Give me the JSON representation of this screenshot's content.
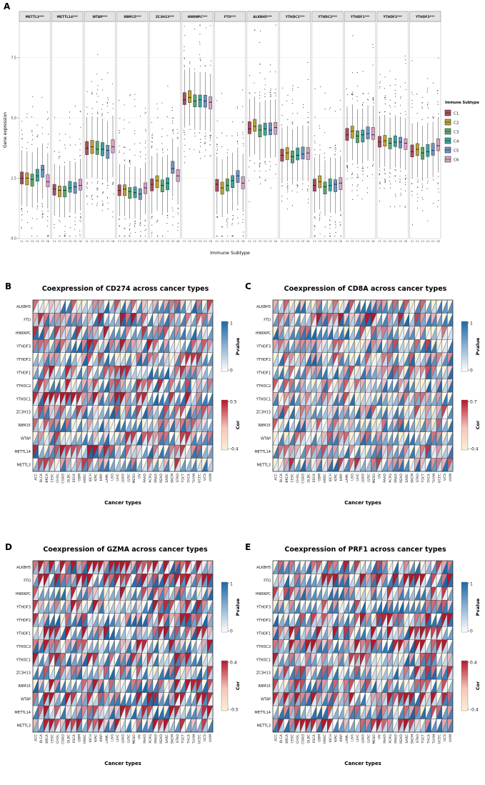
{
  "panels": [
    {
      "letter": "A"
    },
    {
      "letter": "B"
    },
    {
      "letter": "C"
    },
    {
      "letter": "D"
    },
    {
      "letter": "E"
    }
  ],
  "chart_data": [
    {
      "id": "A",
      "type": "boxplot",
      "ylabel": "Gene expression",
      "xlabel": "Immune Subtype",
      "yticks": [
        0,
        2.5,
        5,
        7.5
      ],
      "ytick_labels": [
        "0.0",
        "2.5",
        "5.0",
        "7.5"
      ],
      "ylim": [
        0,
        9.0
      ],
      "legend_title": "Immune Subtype",
      "groups": [
        "C1",
        "C2",
        "C3",
        "C4",
        "C5",
        "C6"
      ],
      "group_colors": [
        "#B04A5A",
        "#BFA22E",
        "#56A86B",
        "#36A79E",
        "#6E93C6",
        "#D9A0C6"
      ],
      "facets": [
        {
          "label": "METTL3***",
          "gene": "METTL3",
          "significance": "***",
          "medians": [
            2.5,
            2.5,
            2.45,
            2.6,
            2.85,
            2.35
          ],
          "iqr": 0.5,
          "whisker": 0.9
        },
        {
          "label": "METTL14***",
          "gene": "METTL14",
          "significance": "***",
          "medians": [
            2.05,
            2.0,
            2.0,
            2.1,
            2.15,
            2.2
          ],
          "iqr": 0.45,
          "whisker": 0.85
        },
        {
          "label": "WTAP***",
          "gene": "WTAP",
          "significance": "***",
          "medians": [
            3.75,
            3.8,
            3.7,
            3.7,
            3.65,
            3.8
          ],
          "iqr": 0.55,
          "whisker": 1.0
        },
        {
          "label": "RBM15***",
          "gene": "RBM15",
          "significance": "***",
          "medians": [
            2.0,
            2.05,
            1.95,
            1.9,
            1.85,
            2.1
          ],
          "iqr": 0.45,
          "whisker": 0.85
        },
        {
          "label": "ZC3H13***",
          "gene": "ZC3H13",
          "significance": "***",
          "medians": [
            2.25,
            2.4,
            2.2,
            2.3,
            2.9,
            2.6
          ],
          "iqr": 0.5,
          "whisker": 0.95
        },
        {
          "label": "HNRNPC***",
          "gene": "HNRNPC",
          "significance": "***",
          "medians": [
            5.75,
            5.85,
            5.7,
            5.75,
            5.7,
            5.65
          ],
          "iqr": 0.5,
          "whisker": 0.95
        },
        {
          "label": "FTO***",
          "gene": "FTO",
          "significance": "***",
          "medians": [
            2.25,
            2.1,
            2.2,
            2.4,
            2.6,
            2.3
          ],
          "iqr": 0.5,
          "whisker": 0.95
        },
        {
          "label": "ALKBH5***",
          "gene": "ALKBH5",
          "significance": "***",
          "medians": [
            4.55,
            4.65,
            4.5,
            4.55,
            4.5,
            4.6
          ],
          "iqr": 0.5,
          "whisker": 0.95
        },
        {
          "label": "YTHDC1***",
          "gene": "YTHDC1",
          "significance": "***",
          "medians": [
            3.45,
            3.55,
            3.4,
            3.45,
            3.5,
            3.55
          ],
          "iqr": 0.5,
          "whisker": 0.9
        },
        {
          "label": "YTHDC2***",
          "gene": "YTHDC2",
          "significance": "***",
          "medians": [
            2.2,
            2.35,
            2.15,
            2.2,
            2.25,
            2.3
          ],
          "iqr": 0.5,
          "whisker": 0.9
        },
        {
          "label": "YTHDF1***",
          "gene": "YTHDF1",
          "significance": "***",
          "medians": [
            4.3,
            4.45,
            4.25,
            4.3,
            4.35,
            4.3
          ],
          "iqr": 0.5,
          "whisker": 0.9
        },
        {
          "label": "YTHDF2***",
          "gene": "YTHDF2",
          "significance": "***",
          "medians": [
            4.0,
            4.05,
            3.95,
            4.0,
            4.0,
            3.95
          ],
          "iqr": 0.45,
          "whisker": 0.85
        },
        {
          "label": "YTHDF3***",
          "gene": "YTHDF3",
          "significance": "***",
          "medians": [
            3.6,
            3.7,
            3.55,
            3.6,
            3.65,
            3.85
          ],
          "iqr": 0.5,
          "whisker": 0.9
        }
      ]
    },
    {
      "id": "B",
      "type": "heatmap",
      "title": "Coexpression of CD274 across cancer types",
      "xlabel": "Cancer types",
      "rows": [
        "ALKBH5",
        "FTO",
        "HNRNPC",
        "YTHDF3",
        "YTHDF2",
        "YTHDF1",
        "YTHDC2",
        "YTHDC1",
        "ZC3H13",
        "RBM15",
        "WTAP",
        "METTL14",
        "METTL3"
      ],
      "columns": [
        "ACC",
        "BLCA",
        "BRCA",
        "CESC",
        "CHOL",
        "COAD",
        "DLBC",
        "ESCA",
        "GBM",
        "HNSC",
        "KICH",
        "KIRC",
        "KIRP",
        "LAML",
        "LGG",
        "LIHC",
        "LUAD",
        "LUSC",
        "MESO",
        "OV",
        "PAAD",
        "PCPG",
        "PRAD",
        "READ",
        "SARC",
        "SKCM",
        "STAD",
        "TGCT",
        "THCA",
        "THYM",
        "UCEC",
        "UCS",
        "UVM"
      ],
      "legends": {
        "pvalue": {
          "label": "Pvalue",
          "max_label": "1",
          "min_label": "0",
          "max": 1,
          "min": 0,
          "color_high": "#1E66A8",
          "color_low": "#FFFFFF"
        },
        "cor": {
          "label": "Cor",
          "max_label": "0.5",
          "min_label": "-0.4",
          "max": 0.5,
          "min": -0.4,
          "color_high": "#B2182B",
          "color_low": "#FBF0D2"
        }
      },
      "seed": 101
    },
    {
      "id": "C",
      "type": "heatmap",
      "title": "Coexpression of CD8A across cancer types",
      "xlabel": "Cancer types",
      "rows": [
        "ALKBH5",
        "FTO",
        "HNRNPC",
        "YTHDF3",
        "YTHDF2",
        "YTHDF1",
        "YTHDC2",
        "YTHDC1",
        "ZC3H13",
        "RBM15",
        "WTAP",
        "METTL14",
        "METTL3"
      ],
      "columns": [
        "ACC",
        "BLCA",
        "BRCA",
        "CESC",
        "CHOL",
        "COAD",
        "DLBC",
        "ESCA",
        "GBM",
        "HNSC",
        "KICH",
        "KIRC",
        "KIRP",
        "LAML",
        "LGG",
        "LIHC",
        "LUAD",
        "LUSC",
        "MESO",
        "OV",
        "PAAD",
        "PCPG",
        "PRAD",
        "READ",
        "SARC",
        "SKCM",
        "STAD",
        "TGCT",
        "THCA",
        "THYM",
        "UCEC",
        "UCS",
        "UVM"
      ],
      "legends": {
        "pvalue": {
          "label": "Pvalue",
          "max_label": "1",
          "min_label": "0",
          "max": 1,
          "min": 0,
          "color_high": "#1E66A8",
          "color_low": "#FFFFFF"
        },
        "cor": {
          "label": "Cor",
          "max_label": "0.7",
          "min_label": "-0.4",
          "max": 0.7,
          "min": -0.4,
          "color_high": "#B2182B",
          "color_low": "#FBF0D2"
        }
      },
      "seed": 202
    },
    {
      "id": "D",
      "type": "heatmap",
      "title": "Coexpression of GZMA across cancer types",
      "xlabel": "Cancer types",
      "rows": [
        "ALKBH5",
        "FTO",
        "HNRNPC",
        "YTHDF3",
        "YTHDF2",
        "YTHDF1",
        "YTHDC2",
        "YTHDC1",
        "ZC3H13",
        "RBM15",
        "WTAP",
        "METTL14",
        "METTL3"
      ],
      "columns": [
        "ACC",
        "BLCA",
        "BRCA",
        "CESC",
        "CHOL",
        "COAD",
        "DLBC",
        "ESCA",
        "GBM",
        "HNSC",
        "KICH",
        "KIRC",
        "KIRP",
        "LAML",
        "LGG",
        "LIHC",
        "LUAD",
        "LUSC",
        "MESO",
        "OV",
        "PAAD",
        "PCPG",
        "PRAD",
        "READ",
        "SARC",
        "SKCM",
        "STAD",
        "TGCT",
        "THCA",
        "THYM",
        "UCEC",
        "UCS",
        "UVM"
      ],
      "legends": {
        "pvalue": {
          "label": "Pvalue",
          "max_label": "1",
          "min_label": "0",
          "max": 1,
          "min": 0,
          "color_high": "#1E66A8",
          "color_low": "#FFFFFF"
        },
        "cor": {
          "label": "Cor",
          "max_label": "0.4",
          "min_label": "-0.5",
          "max": 0.4,
          "min": -0.5,
          "color_high": "#B2182B",
          "color_low": "#FBF0D2"
        }
      },
      "seed": 303
    },
    {
      "id": "E",
      "type": "heatmap",
      "title": "Coexpression of PRF1 across cancer types",
      "xlabel": "Cancer types",
      "rows": [
        "ALKBH5",
        "FTO",
        "HNRNPC",
        "YTHDF3",
        "YTHDF2",
        "YTHDF1",
        "YTHDC2",
        "YTHDC1",
        "ZC3H13",
        "RBM15",
        "WTAP",
        "METTL14",
        "METTL3"
      ],
      "columns": [
        "ACC",
        "BLCA",
        "BRCA",
        "CESC",
        "CHOL",
        "COAD",
        "DLBC",
        "ESCA",
        "GBM",
        "HNSC",
        "KICH",
        "KIRC",
        "KIRP",
        "LAML",
        "LGG",
        "LIHC",
        "LUAD",
        "LUSC",
        "MESO",
        "OV",
        "PAAD",
        "PCPG",
        "PRAD",
        "READ",
        "SARC",
        "SKCM",
        "STAD",
        "TGCT",
        "THCA",
        "THYM",
        "UCEC",
        "UCS",
        "UVM"
      ],
      "legends": {
        "pvalue": {
          "label": "Pvalue",
          "max_label": "1",
          "min_label": "0",
          "max": 1,
          "min": 0,
          "color_high": "#1E66A8",
          "color_low": "#FFFFFF"
        },
        "cor": {
          "label": "Cor",
          "max_label": "0.4",
          "min_label": "-0.4",
          "max": 0.4,
          "min": -0.4,
          "color_high": "#B2182B",
          "color_low": "#FBF0D2"
        }
      },
      "seed": 404
    }
  ]
}
